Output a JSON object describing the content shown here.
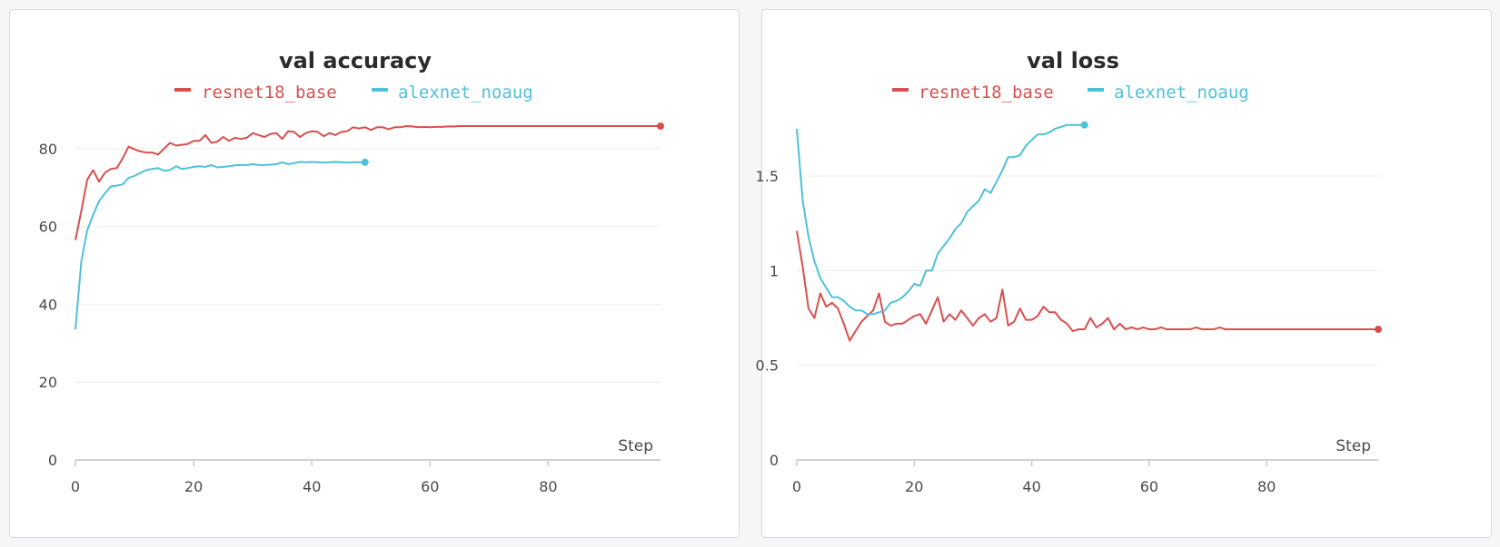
{
  "colors": {
    "resnet18_base": "#d94f4f",
    "alexnet_noaug": "#4fc1d9"
  },
  "chart_data": [
    {
      "type": "line",
      "title": "val accuracy",
      "xlabel": "Step",
      "ylabel": "",
      "xlim": [
        0,
        99
      ],
      "ylim": [
        0,
        90
      ],
      "xticks": [
        0,
        20,
        40,
        60,
        80
      ],
      "yticks": [
        0,
        20,
        40,
        60,
        80
      ],
      "ytick_labels": [
        "0",
        "20",
        "40",
        "60",
        "80"
      ],
      "legend": "top-center",
      "grid": true,
      "series": [
        {
          "name": "resnet18_base",
          "color": "#d94f4f",
          "values": [
            56.5,
            64.0,
            72.0,
            74.5,
            71.5,
            73.8,
            74.8,
            75.0,
            77.5,
            80.5,
            79.8,
            79.3,
            79.0,
            79.0,
            78.5,
            80.0,
            81.5,
            80.8,
            81.0,
            81.2,
            82.0,
            82.0,
            83.5,
            81.5,
            81.8,
            83.0,
            82.0,
            82.8,
            82.5,
            82.8,
            84.0,
            83.5,
            83.0,
            83.8,
            84.0,
            82.5,
            84.5,
            84.3,
            83.0,
            84.0,
            84.5,
            84.3,
            83.2,
            84.0,
            83.5,
            84.3,
            84.5,
            85.5,
            85.2,
            85.5,
            84.8,
            85.5,
            85.5,
            85.0,
            85.5,
            85.5,
            85.8,
            85.7,
            85.5,
            85.6,
            85.5,
            85.6,
            85.6,
            85.7,
            85.7,
            85.8,
            85.8,
            85.8,
            85.8,
            85.8,
            85.8,
            85.8,
            85.8,
            85.8,
            85.8,
            85.8,
            85.8,
            85.8,
            85.8,
            85.8,
            85.8,
            85.8,
            85.8,
            85.8,
            85.8,
            85.8,
            85.8,
            85.8,
            85.8,
            85.8,
            85.8,
            85.8,
            85.8,
            85.8,
            85.8,
            85.8,
            85.8,
            85.8,
            85.8,
            85.8
          ]
        },
        {
          "name": "alexnet_noaug",
          "color": "#4fc1d9",
          "values": [
            33.5,
            51.0,
            59.0,
            63.0,
            66.5,
            68.5,
            70.3,
            70.5,
            70.8,
            72.5,
            73.0,
            73.8,
            74.5,
            74.8,
            75.0,
            74.3,
            74.5,
            75.5,
            74.8,
            75.0,
            75.3,
            75.5,
            75.3,
            75.8,
            75.2,
            75.3,
            75.5,
            75.7,
            75.8,
            75.8,
            76.0,
            75.8,
            75.8,
            75.9,
            76.0,
            76.5,
            76.0,
            76.3,
            76.6,
            76.5,
            76.6,
            76.5,
            76.4,
            76.5,
            76.6,
            76.5,
            76.4,
            76.5,
            76.5,
            76.5
          ]
        }
      ]
    },
    {
      "type": "line",
      "title": "val loss",
      "xlabel": "Step",
      "ylabel": "",
      "xlim": [
        0,
        99
      ],
      "ylim": [
        0,
        1.85
      ],
      "xticks": [
        0,
        20,
        40,
        60,
        80
      ],
      "yticks": [
        0,
        0.5,
        1,
        1.5
      ],
      "ytick_labels": [
        "0",
        "0.5",
        "1",
        "1.5"
      ],
      "legend": "top-center",
      "grid": true,
      "series": [
        {
          "name": "resnet18_base",
          "color": "#d94f4f",
          "values": [
            1.21,
            1.02,
            0.8,
            0.75,
            0.88,
            0.81,
            0.83,
            0.8,
            0.72,
            0.63,
            0.68,
            0.73,
            0.76,
            0.79,
            0.88,
            0.73,
            0.71,
            0.72,
            0.72,
            0.74,
            0.76,
            0.77,
            0.72,
            0.79,
            0.86,
            0.73,
            0.77,
            0.74,
            0.79,
            0.75,
            0.71,
            0.75,
            0.77,
            0.73,
            0.75,
            0.9,
            0.71,
            0.73,
            0.8,
            0.74,
            0.74,
            0.76,
            0.81,
            0.78,
            0.78,
            0.74,
            0.72,
            0.68,
            0.69,
            0.69,
            0.75,
            0.7,
            0.72,
            0.75,
            0.69,
            0.72,
            0.69,
            0.7,
            0.69,
            0.7,
            0.69,
            0.69,
            0.7,
            0.69,
            0.69,
            0.69,
            0.69,
            0.69,
            0.7,
            0.69,
            0.69,
            0.69,
            0.7,
            0.69,
            0.69,
            0.69,
            0.69,
            0.69,
            0.69,
            0.69,
            0.69,
            0.69,
            0.69,
            0.69,
            0.69,
            0.69,
            0.69,
            0.69,
            0.69,
            0.69,
            0.69,
            0.69,
            0.69,
            0.69,
            0.69,
            0.69,
            0.69,
            0.69,
            0.69,
            0.69
          ]
        },
        {
          "name": "alexnet_noaug",
          "color": "#4fc1d9",
          "values": [
            1.75,
            1.37,
            1.18,
            1.05,
            0.96,
            0.91,
            0.86,
            0.86,
            0.84,
            0.81,
            0.79,
            0.79,
            0.77,
            0.77,
            0.78,
            0.79,
            0.83,
            0.84,
            0.86,
            0.89,
            0.93,
            0.92,
            1.0,
            1.0,
            1.09,
            1.13,
            1.17,
            1.22,
            1.25,
            1.31,
            1.34,
            1.37,
            1.43,
            1.41,
            1.47,
            1.53,
            1.6,
            1.6,
            1.61,
            1.66,
            1.69,
            1.72,
            1.72,
            1.73,
            1.75,
            1.76,
            1.77,
            1.77,
            1.77,
            1.77
          ]
        }
      ]
    }
  ]
}
